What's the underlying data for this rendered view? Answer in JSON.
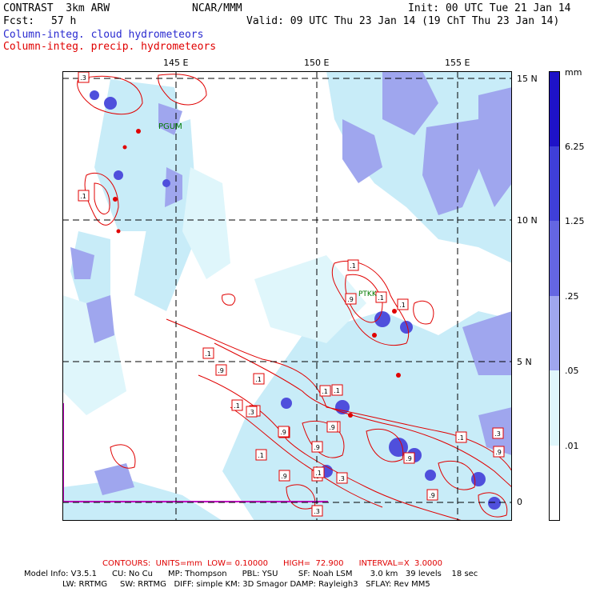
{
  "header": {
    "model": "CONTRAST  3km ARW",
    "org": "NCAR/MMM",
    "init": "Init: 00 UTC Tue 21 Jan 14",
    "fcst_label": "Fcst:",
    "fcst_value": "57 h",
    "valid": "Valid: 09 UTC Thu 23 Jan 14 (19 ChT Thu 23 Jan 14)",
    "legend_blue": "Column-integ. cloud hydrometeors",
    "legend_red": "Column-integ. precip. hydrometeors"
  },
  "colors": {
    "cloud_lightest": "#dff6fb",
    "cloud_light": "#c8ecf8",
    "cloud_mid": "#9fa6ee",
    "cloud_dark": "#6466e2",
    "cloud_darker": "#3f3fd8",
    "cloud_darkest": "#1e12c8",
    "precip": "#e00000",
    "station": "#007a00",
    "boundary": "#c000c0"
  },
  "axes": {
    "lon_labels": [
      "145 E",
      "150 E",
      "155 E"
    ],
    "lat_labels": [
      "15 N",
      "10 N",
      "5 N",
      "0"
    ]
  },
  "stations": [
    "PGUM",
    "PTKK"
  ],
  "contour_labels": [
    ".3",
    ".1",
    ".1",
    ".9",
    ".1",
    ".1",
    ".1",
    ".1",
    ".9",
    ".1",
    ".1",
    ".3",
    ".9",
    ".9",
    ".3",
    ".1",
    ".9",
    ".3",
    ".1",
    ".1",
    ".9",
    ".9",
    ".3",
    ".9",
    ".1",
    ".3",
    ".9",
    ".9",
    ".1",
    ".9"
  ],
  "colorbar": {
    "unit": "mm",
    "labels": [
      "6.25",
      "1.25",
      ".25",
      ".05",
      ".01"
    ]
  },
  "footer": {
    "contours": "CONTOURS:  UNITS=mm  LOW= 0.10000      HIGH=  72.900      INTERVAL=X  3.0000",
    "model_info_1": "Model Info: V3.5.1      CU: No Cu      MP: Thompson      PBL: YSU        SF: Noah LSM       3.0 km   39 levels    18 sec",
    "model_info_2": "LW: RRTMG     SW: RRTMG   DIFF: simple KM: 3D Smagor DAMP: Rayleigh3   SFLAY: Rev MM5"
  }
}
